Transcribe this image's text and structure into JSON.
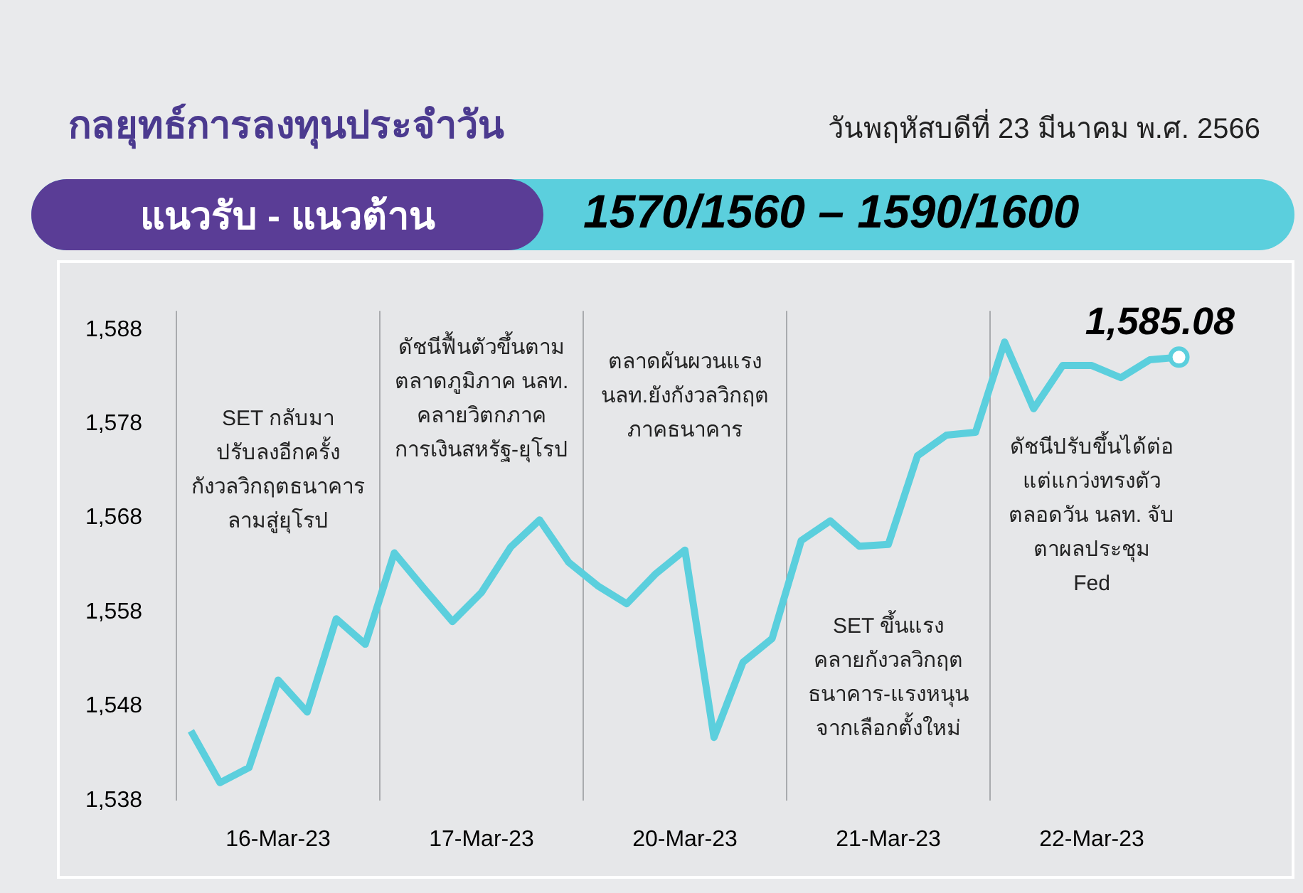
{
  "chart_data": {
    "type": "line",
    "title": "กลยุทธ์การลงทุนประจำวัน",
    "subtitle": "วันพฤหัสบดีที่ 23 มีนาคม พ.ศ. 2566",
    "annotations": [
      "แนวรับ - แนวต้าน",
      "1570/1560 – 1590/1600",
      "SET กลับมา\nปรับลงอีกครั้ง\nกังวลวิกฤตธนาคาร\nลามสู่ยุโรป",
      "ดัชนีฟื้นตัวขึ้นตาม\nตลาดภูมิภาค นลท.\nคลายวิตกภาค\nการเงินสหรัฐ-ยุโรป",
      "ตลาดผันผวนแรง\nนลท.ยังกังวลวิกฤต\nภาคธนาคาร",
      "SET ขึ้นแรง\nคลายกังวลวิกฤต\nธนาคาร-แรงหนุน\nจากเลือกตั้งใหม่",
      "ดัชนีปรับขึ้นได้ต่อ\nแต่แกว่งทรงตัว\nตลอดวัน นลท. จับ\nตาผลประชุม\nFed"
    ],
    "categories": [
      null,
      null,
      null,
      "16-Mar-23",
      null,
      null,
      null,
      null,
      null,
      null,
      "17-Mar-23",
      null,
      null,
      null,
      null,
      null,
      null,
      "20-Mar-23",
      null,
      null,
      null,
      null,
      null,
      null,
      "21-Mar-23",
      null,
      null,
      null,
      null,
      null,
      null,
      "22-Mar-23",
      null,
      null,
      null
    ],
    "series": [
      {
        "color": "#5bcfdd",
        "values": [
          1545.4,
          1539.9,
          1541.5,
          1550.8,
          1547.4,
          1557.3,
          1554.6,
          1564.3,
          1560.6,
          1557.0,
          1560.1,
          1564.9,
          1567.8,
          1563.3,
          1560.8,
          1558.9,
          1562.1,
          1564.6,
          1544.7,
          1552.7,
          1555.2,
          1565.6,
          1567.7,
          1565.0,
          1565.2,
          1574.6,
          1576.8,
          1577.1,
          1586.7,
          1579.6,
          1584.2,
          1584.2,
          1582.9,
          1584.8,
          1585.08
        ],
        "value_labels": [
          null,
          null,
          null,
          null,
          null,
          null,
          null,
          null,
          null,
          null,
          null,
          null,
          null,
          null,
          null,
          null,
          null,
          null,
          null,
          null,
          null,
          null,
          null,
          null,
          null,
          null,
          null,
          null,
          null,
          null,
          null,
          null,
          null,
          null,
          "1,585.08"
        ]
      }
    ],
    "ylim": [
      1538,
      1590
    ],
    "yticks": [
      {
        "value": 1538,
        "label": "1,538"
      },
      {
        "value": 1548,
        "label": "1,548"
      },
      {
        "value": 1558,
        "label": "1,558"
      },
      {
        "value": 1568,
        "label": "1,568"
      },
      {
        "value": 1578,
        "label": "1,578"
      },
      {
        "value": 1588,
        "label": "1,588"
      }
    ],
    "grid": "x",
    "legend": false
  }
}
